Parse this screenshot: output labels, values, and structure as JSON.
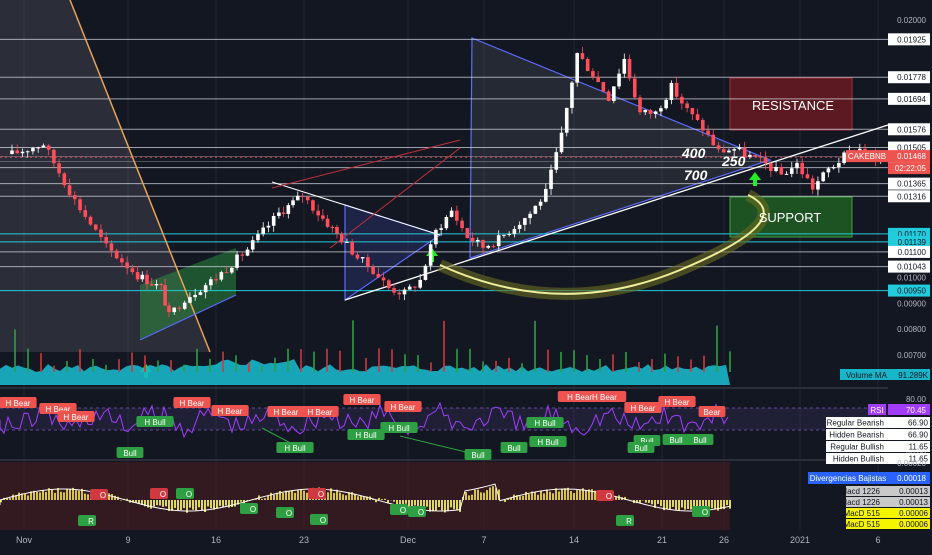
{
  "chart_data": {
    "type": "candlestick",
    "symbol": "CAKEBNB",
    "countdown": "02:22:05",
    "last_price": "0.01468",
    "x_labels": [
      "Nov",
      "9",
      "16",
      "23",
      "Dec",
      "7",
      "14",
      "21",
      "26",
      "2021",
      "6"
    ],
    "price_axis_labels": [
      "0.02000",
      "0.01925",
      "0.01778",
      "0.01694",
      "0.01576",
      "0.01505",
      "0.01427",
      "0.01365",
      "0.01316",
      "0.01100",
      "0.01043",
      "0.01000",
      "0.00900",
      "0.00800",
      "0.00700"
    ],
    "price_axis_boxed": [
      {
        "label": "0.01925",
        "bg": "#ffffff",
        "fg": "#131722"
      },
      {
        "label": "0.01778",
        "bg": "#ffffff",
        "fg": "#131722"
      },
      {
        "label": "0.01694",
        "bg": "#ffffff",
        "fg": "#131722"
      },
      {
        "label": "0.01576",
        "bg": "#ffffff",
        "fg": "#131722"
      },
      {
        "label": "0.01505",
        "bg": "#ffffff",
        "fg": "#131722"
      },
      {
        "label": "0.01427",
        "bg": "#ffffff",
        "fg": "#131722"
      },
      {
        "label": "0.01365",
        "bg": "#ffffff",
        "fg": "#131722"
      },
      {
        "label": "0.01316",
        "bg": "#ffffff",
        "fg": "#131722"
      },
      {
        "label": "0.01170",
        "bg": "#22ccdd",
        "fg": "#131722"
      },
      {
        "label": "0.01139",
        "bg": "#22ccdd",
        "fg": "#131722"
      },
      {
        "label": "0.01100",
        "bg": "#ffffff",
        "fg": "#131722"
      },
      {
        "label": "0.01043",
        "bg": "#ffffff",
        "fg": "#131722"
      },
      {
        "label": "0.00950",
        "bg": "#22ccdd",
        "fg": "#131722"
      }
    ],
    "annotations": {
      "resistance": "RESISTANCE",
      "support": "SUPPORT",
      "n400": "400",
      "n700": "700",
      "n250": "250"
    },
    "volume": {
      "label": "Volume MA",
      "value": "91.289K"
    },
    "rsi": {
      "label": "RSI",
      "value": "70.45",
      "legend": [
        {
          "name": "Regular Bearish",
          "value": "66.90"
        },
        {
          "name": "Hidden Bearish",
          "value": "66.90"
        },
        {
          "name": "Regular Bullish",
          "value": "11.65"
        },
        {
          "name": "Hidden Bullish",
          "value": "11.65"
        }
      ],
      "axis": [
        "80.00",
        "40.00"
      ],
      "bear_tags": [
        "H Bear",
        "H Bear",
        "H Bear",
        "H Bear",
        "H Bear",
        "H Bear",
        "H Bear",
        "H Bear",
        "H Bear",
        "H BearH Bear",
        "H Bear",
        "H Bear",
        "Bear"
      ],
      "bull_tags": [
        "H Bull",
        "Bull",
        "H Bull",
        "H Bull",
        "H Bull",
        "H Bull",
        "Bull",
        "Bull",
        "H Bull",
        "Bull",
        "Bull",
        "Bull",
        "Bull"
      ]
    },
    "macd": {
      "label": "Divergencias Bajistas",
      "value": "0.00018",
      "legend": [
        {
          "name": "Macd 1226",
          "value": "0.00013"
        },
        {
          "name": "Macd 1226",
          "value": "0.00013"
        },
        {
          "name": "MacD 515",
          "value": "0.00006"
        },
        {
          "name": "MacD 515",
          "value": "0.00006"
        }
      ],
      "axis": [
        "0.00020"
      ],
      "marker_labels": [
        "O",
        "O",
        "O",
        "R",
        "O",
        "O",
        "O",
        "O",
        "O",
        "O",
        "O",
        "O",
        "R"
      ]
    },
    "colors": {
      "background": "#131722",
      "up": "#ffffff",
      "down": "#ff4d5a",
      "cyan": "#22ccdd",
      "triangle": "#5c6bff",
      "resistance_box": "#6b1a22",
      "support_box": "#1f5a22",
      "curve": "#f0ee9c",
      "arrow": "#22ee22"
    }
  }
}
